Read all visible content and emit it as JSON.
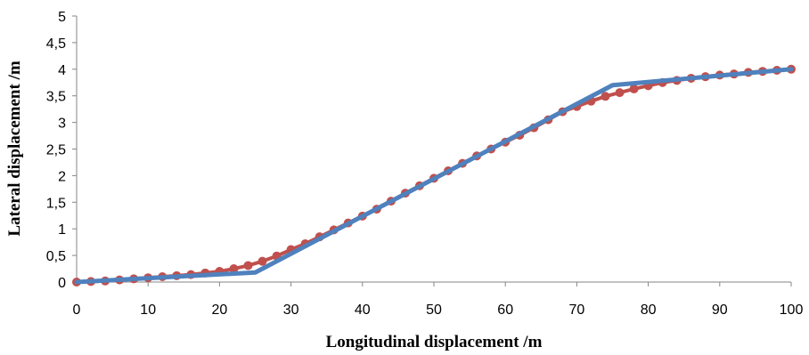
{
  "chart_data": {
    "type": "line",
    "title": "",
    "xlabel": "Longitudinal displacement /m",
    "ylabel": "Lateral displacement /m",
    "xlim": [
      0,
      100
    ],
    "ylim": [
      0,
      5
    ],
    "x_ticks": [
      0,
      10,
      20,
      30,
      40,
      50,
      60,
      70,
      80,
      90,
      100
    ],
    "x_tick_labels": [
      "0",
      "10",
      "20",
      "30",
      "40",
      "50",
      "60",
      "70",
      "80",
      "90",
      "100"
    ],
    "y_ticks": [
      0,
      0.5,
      1,
      1.5,
      2,
      2.5,
      3,
      3.5,
      4,
      4.5,
      5
    ],
    "y_tick_labels": [
      "0",
      "0,5",
      "1",
      "1,5",
      "2",
      "2,5",
      "3",
      "3,5",
      "4",
      "4,5",
      "5"
    ],
    "grid": false,
    "legend": "none",
    "series": [
      {
        "color": "#c0504d",
        "marker": "circle",
        "points": [
          [
            0,
            0
          ],
          [
            2,
            0.01
          ],
          [
            4,
            0.02
          ],
          [
            6,
            0.04
          ],
          [
            8,
            0.06
          ],
          [
            10,
            0.08
          ],
          [
            12,
            0.1
          ],
          [
            14,
            0.12
          ],
          [
            16,
            0.14
          ],
          [
            18,
            0.17
          ],
          [
            20,
            0.2
          ],
          [
            22,
            0.25
          ],
          [
            24,
            0.31
          ],
          [
            26,
            0.39
          ],
          [
            28,
            0.49
          ],
          [
            30,
            0.61
          ],
          [
            32,
            0.72
          ],
          [
            34,
            0.85
          ],
          [
            36,
            0.98
          ],
          [
            38,
            1.11
          ],
          [
            40,
            1.24
          ],
          [
            42,
            1.37
          ],
          [
            44,
            1.52
          ],
          [
            46,
            1.67
          ],
          [
            48,
            1.81
          ],
          [
            50,
            1.95
          ],
          [
            52,
            2.09
          ],
          [
            54,
            2.23
          ],
          [
            56,
            2.37
          ],
          [
            58,
            2.5
          ],
          [
            60,
            2.63
          ],
          [
            62,
            2.76
          ],
          [
            64,
            2.9
          ],
          [
            66,
            3.05
          ],
          [
            68,
            3.2
          ],
          [
            70,
            3.3
          ],
          [
            72,
            3.4
          ],
          [
            74,
            3.49
          ],
          [
            76,
            3.56
          ],
          [
            78,
            3.63
          ],
          [
            80,
            3.69
          ],
          [
            82,
            3.75
          ],
          [
            84,
            3.79
          ],
          [
            86,
            3.83
          ],
          [
            88,
            3.86
          ],
          [
            90,
            3.89
          ],
          [
            92,
            3.91
          ],
          [
            94,
            3.94
          ],
          [
            96,
            3.96
          ],
          [
            98,
            3.98
          ],
          [
            100,
            4.0
          ]
        ]
      },
      {
        "color": "#4f81bd",
        "marker": "none",
        "points": [
          [
            0,
            0
          ],
          [
            25,
            0.18
          ],
          [
            75,
            3.7
          ],
          [
            100,
            4.0
          ]
        ]
      }
    ]
  }
}
